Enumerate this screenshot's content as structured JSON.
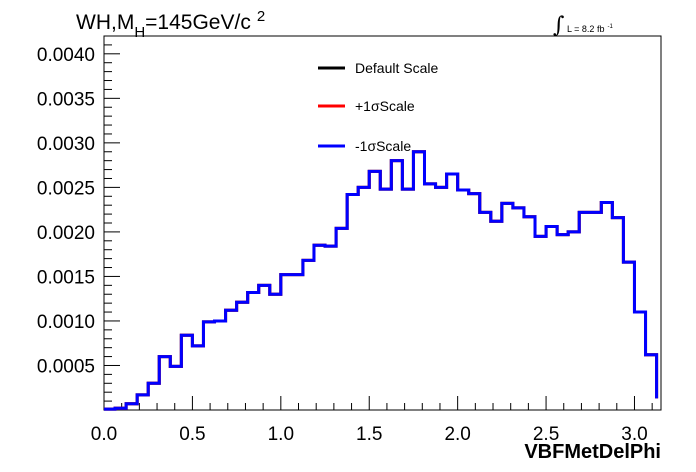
{
  "title": {
    "main": "WH,M",
    "sub": "H",
    "rest": "=145GeV/c",
    "sup": "2"
  },
  "lumi": {
    "symbol": "∫",
    "text": "L = 8.2 fb",
    "sup": "-1"
  },
  "legend": {
    "entries": [
      {
        "label": "Default Scale",
        "color": "#000000"
      },
      {
        "label": "+1σScale",
        "color": "#ff0000"
      },
      {
        "label": "-1σScale",
        "color": "#0000ff"
      }
    ]
  },
  "chart_data": {
    "type": "histogram",
    "xlabel": "VBFMetDelPhi",
    "ylabel": "",
    "xlim": [
      0.0,
      3.15
    ],
    "ylim": [
      0.0,
      0.0042
    ],
    "x_ticks": [
      "0.0",
      "0.5",
      "1.0",
      "1.5",
      "2.0",
      "2.5",
      "3.0"
    ],
    "x_tick_values": [
      0.0,
      0.5,
      1.0,
      1.5,
      2.0,
      2.5,
      3.0
    ],
    "y_ticks": [
      "0.0005",
      "0.0010",
      "0.0015",
      "0.0020",
      "0.0025",
      "0.0030",
      "0.0035",
      "0.0040"
    ],
    "y_tick_values": [
      0.0005,
      0.001,
      0.0015,
      0.002,
      0.0025,
      0.003,
      0.0035,
      0.004
    ],
    "bin_edges": [
      0.0,
      0.0625,
      0.125,
      0.1875,
      0.25,
      0.3125,
      0.375,
      0.4375,
      0.5,
      0.5625,
      0.625,
      0.6875,
      0.75,
      0.8125,
      0.875,
      0.9375,
      1.0,
      1.0625,
      1.125,
      1.1875,
      1.25,
      1.3125,
      1.375,
      1.4375,
      1.5,
      1.5625,
      1.625,
      1.6875,
      1.75,
      1.8125,
      1.875,
      1.9375,
      2.0,
      2.0625,
      2.125,
      2.1875,
      2.25,
      2.3125,
      2.375,
      2.4375,
      2.5,
      2.5625,
      2.625,
      2.6875,
      2.75,
      2.8125,
      2.875,
      2.9375,
      3.0,
      3.0625,
      3.125
    ],
    "series": [
      {
        "name": "Default Scale",
        "color": "#000000",
        "values": [
          1e-05,
          2e-05,
          7e-05,
          0.00017,
          0.0003,
          0.0006,
          0.00049,
          0.00084,
          0.00072,
          0.00099,
          0.001,
          0.00112,
          0.00121,
          0.00132,
          0.0014,
          0.0013,
          0.00152,
          0.00152,
          0.00168,
          0.00185,
          0.00184,
          0.00204,
          0.00242,
          0.0025,
          0.00268,
          0.00248,
          0.0028,
          0.00248,
          0.0029,
          0.00254,
          0.0025,
          0.00265,
          0.00247,
          0.00243,
          0.00222,
          0.00212,
          0.00232,
          0.00227,
          0.00217,
          0.00195,
          0.00206,
          0.00197,
          0.002,
          0.00222,
          0.00222,
          0.00233,
          0.00216,
          0.00166,
          0.0011,
          0.00062,
          0.00013
        ]
      },
      {
        "name": "+1σScale",
        "color": "#ff0000",
        "values": [
          1e-05,
          2e-05,
          7e-05,
          0.00017,
          0.0003,
          0.0006,
          0.00049,
          0.00084,
          0.00072,
          0.00099,
          0.001,
          0.00112,
          0.00121,
          0.00132,
          0.0014,
          0.0013,
          0.00152,
          0.00152,
          0.00168,
          0.00185,
          0.00184,
          0.00204,
          0.00242,
          0.0025,
          0.00268,
          0.00248,
          0.0028,
          0.00248,
          0.0029,
          0.00254,
          0.0025,
          0.00265,
          0.00247,
          0.00243,
          0.00222,
          0.00212,
          0.00232,
          0.00227,
          0.00217,
          0.00195,
          0.00206,
          0.00197,
          0.002,
          0.00222,
          0.00222,
          0.00233,
          0.00216,
          0.00166,
          0.0011,
          0.00062,
          0.00013
        ]
      },
      {
        "name": "-1σScale",
        "color": "#0000ff",
        "values": [
          1e-05,
          2e-05,
          7e-05,
          0.00017,
          0.0003,
          0.0006,
          0.00049,
          0.00084,
          0.00072,
          0.00099,
          0.001,
          0.00112,
          0.00121,
          0.00132,
          0.0014,
          0.0013,
          0.00152,
          0.00152,
          0.00168,
          0.00185,
          0.00184,
          0.00204,
          0.00242,
          0.0025,
          0.00268,
          0.00248,
          0.0028,
          0.00248,
          0.0029,
          0.00254,
          0.0025,
          0.00265,
          0.00247,
          0.00243,
          0.00222,
          0.00212,
          0.00232,
          0.00227,
          0.00217,
          0.00195,
          0.00206,
          0.00197,
          0.002,
          0.00222,
          0.00222,
          0.00233,
          0.00216,
          0.00166,
          0.0011,
          0.00062,
          0.00013
        ]
      }
    ]
  }
}
